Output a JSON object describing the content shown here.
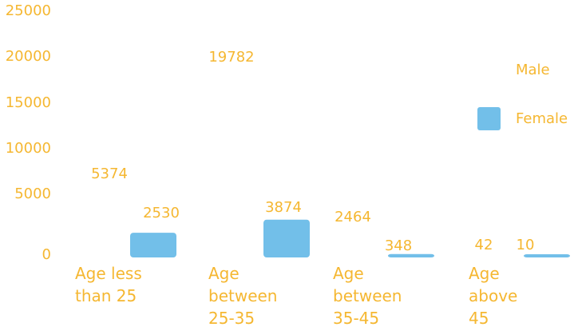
{
  "chart_data": {
    "type": "bar",
    "categories": [
      [
        "Age less",
        "than 25"
      ],
      [
        "Age",
        "between",
        "25-35"
      ],
      [
        "Age",
        "between",
        "35-45"
      ],
      [
        "Age",
        "above",
        "45"
      ]
    ],
    "series": [
      {
        "name": "Male",
        "values": [
          5374,
          19782,
          2464,
          42
        ]
      },
      {
        "name": "Female",
        "values": [
          2530,
          3874,
          348,
          10
        ]
      }
    ],
    "y_ticks": [
      "0",
      "5000",
      "10000",
      "15000",
      "20000",
      "25000"
    ],
    "ylim": [
      0,
      25000
    ],
    "legend_position": "right",
    "colors": {
      "Male": "#ffffff",
      "Female": "#72bfe9",
      "text": "#f5b731"
    },
    "title": "",
    "xlabel": "",
    "ylabel": ""
  }
}
